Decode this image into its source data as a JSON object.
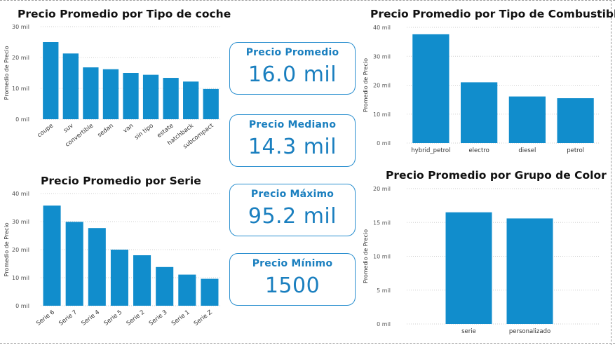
{
  "kpis": [
    {
      "label": "Precio Promedio",
      "value": "16.0 mil"
    },
    {
      "label": "Precio Mediano",
      "value": "14.3 mil"
    },
    {
      "label": "Precio Máximo",
      "value": "95.2 mil"
    },
    {
      "label": "Precio Mínimo",
      "value": "1500"
    }
  ],
  "chart_data": [
    {
      "id": "tipo-coche",
      "type": "bar",
      "title": "Precio Promedio por Tipo de coche",
      "ylabel": "Promedio de Precio",
      "categories": [
        "coupe",
        "suv",
        "convertible",
        "sedan",
        "van",
        "sin tipo",
        "estate",
        "hatchback",
        "subcompact"
      ],
      "values": [
        25,
        21.3,
        16.8,
        16.2,
        15,
        14.4,
        13.4,
        12.2,
        9.8
      ],
      "ylim": [
        0,
        30
      ],
      "yticks": [
        "0 mil",
        "10 mil",
        "20 mil",
        "30 mil"
      ],
      "ytick_values": [
        0,
        10,
        20,
        30
      ],
      "rotate_labels": true
    },
    {
      "id": "serie",
      "type": "bar",
      "title": "Precio Promedio por Serie",
      "ylabel": "Promedio de Precio",
      "categories": [
        "Serie 6",
        "Serie 7",
        "Serie 4",
        "Serie 5",
        "Serie 2",
        "Serie 3",
        "Serie 1",
        "Serie Z"
      ],
      "values": [
        35.7,
        29.9,
        27.7,
        20,
        18,
        13.8,
        11.1,
        9.6
      ],
      "ylim": [
        0,
        40
      ],
      "yticks": [
        "0 mil",
        "10 mil",
        "20 mil",
        "30 mil",
        "40 mil"
      ],
      "ytick_values": [
        0,
        10,
        20,
        30,
        40
      ],
      "rotate_labels": true
    },
    {
      "id": "combustible",
      "type": "bar",
      "title": "Precio Promedio por Tipo de Combustible",
      "ylabel": "Promedio de Precio",
      "categories": [
        "hybrid_petrol",
        "electro",
        "diesel",
        "petrol"
      ],
      "values": [
        37.6,
        21,
        16.1,
        15.5
      ],
      "ylim": [
        0,
        40
      ],
      "yticks": [
        "0 mil",
        "10 mil",
        "20 mil",
        "30 mil",
        "40 mil"
      ],
      "ytick_values": [
        0,
        10,
        20,
        30,
        40
      ],
      "rotate_labels": false
    },
    {
      "id": "color",
      "type": "bar",
      "title": "Precio Promedio por Grupo de Color",
      "ylabel": "Promedio de Precio",
      "categories": [
        "serie",
        "personalizado"
      ],
      "values": [
        16.5,
        15.6
      ],
      "ylim": [
        0,
        20
      ],
      "yticks": [
        "0 mil",
        "5 mil",
        "10 mil",
        "15 mil",
        "20 mil"
      ],
      "ytick_values": [
        0,
        5,
        10,
        15,
        20
      ],
      "rotate_labels": false
    }
  ]
}
